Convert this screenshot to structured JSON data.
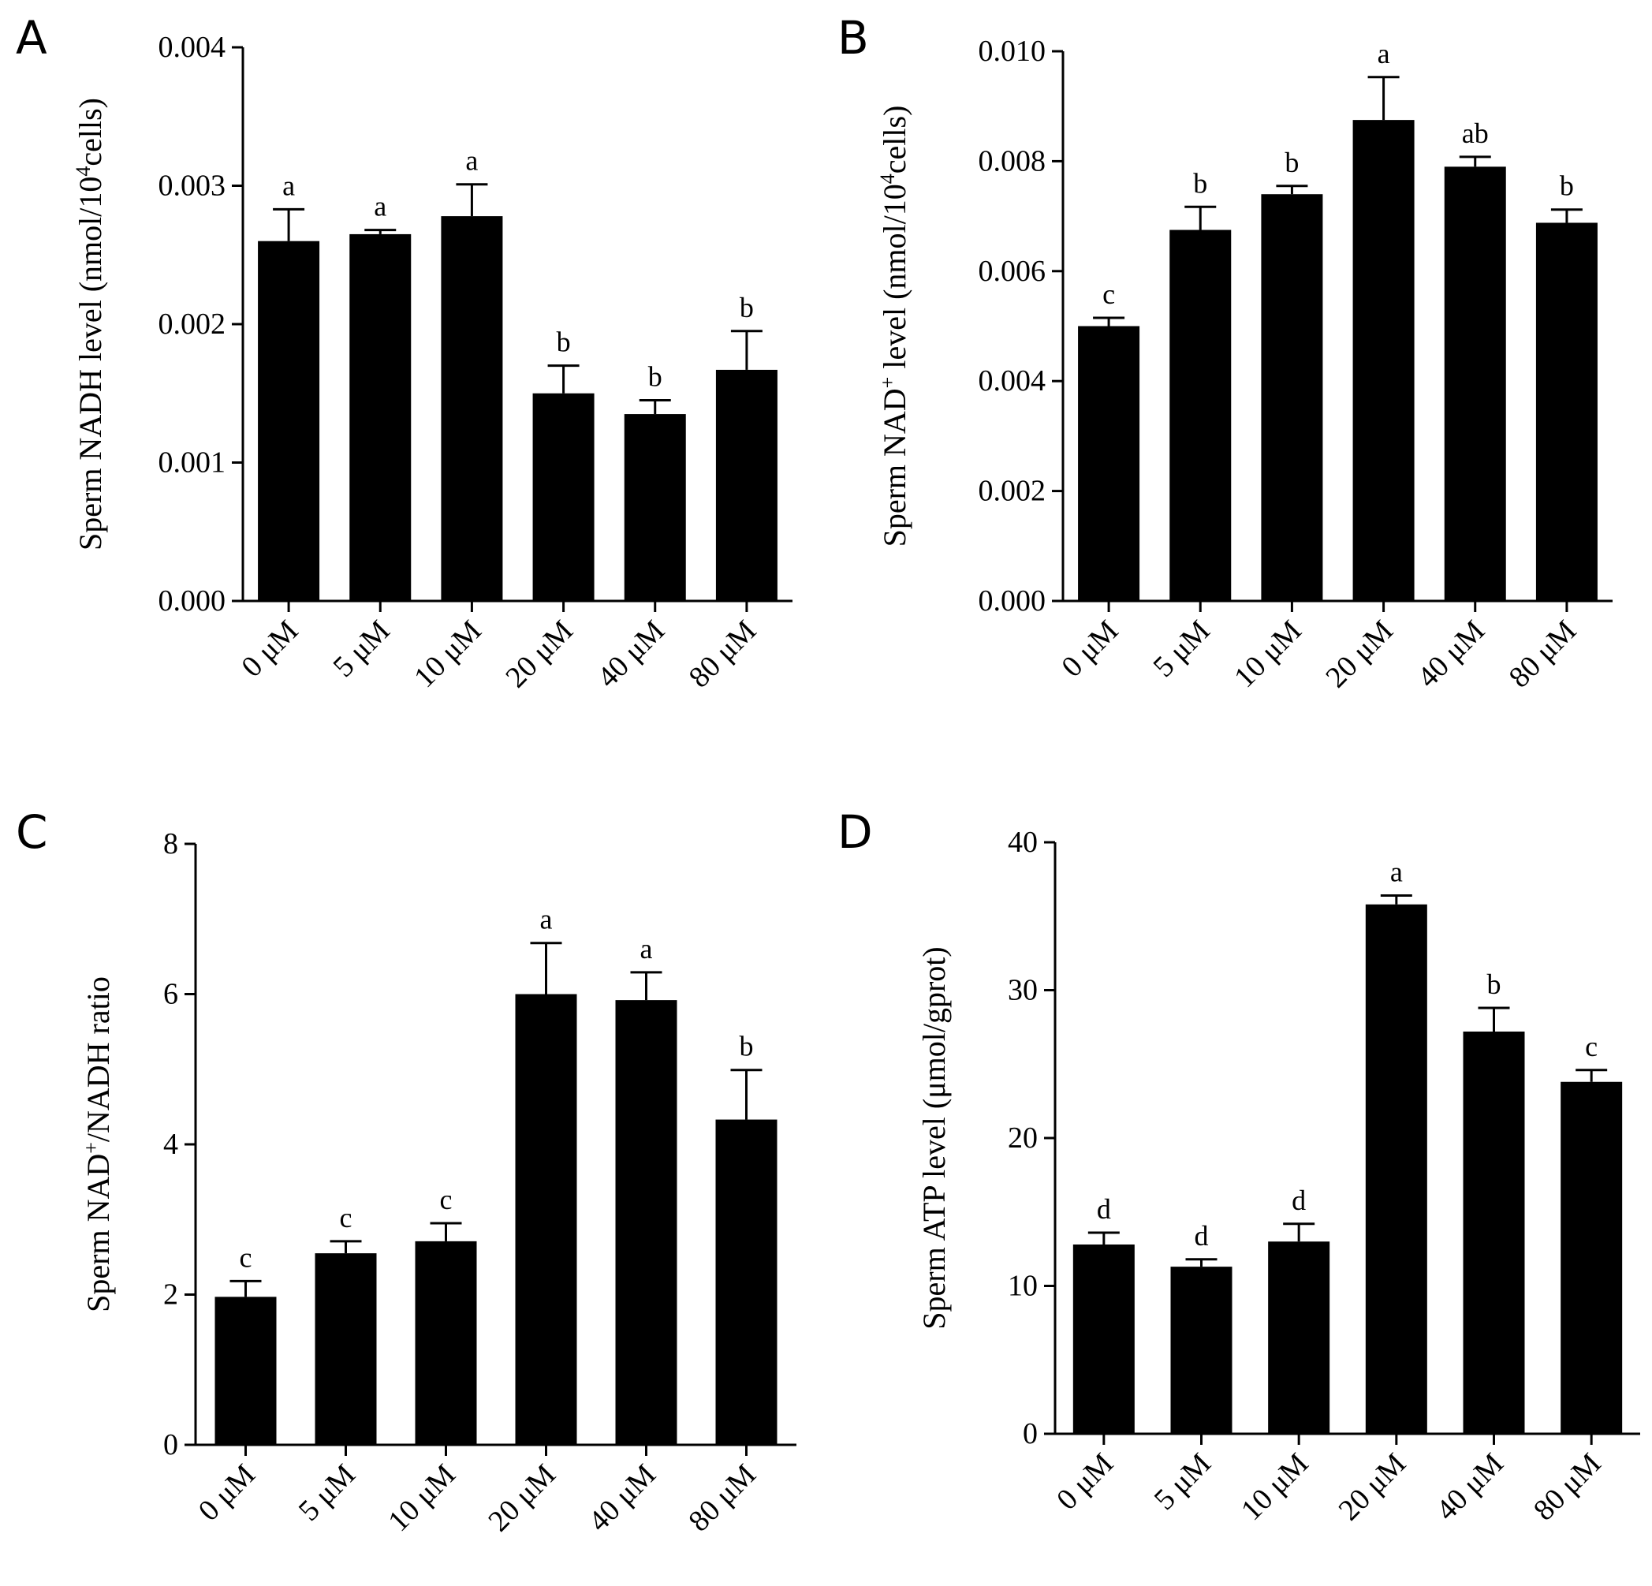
{
  "colors": {
    "bar": "#000000",
    "axis": "#000000",
    "background": "#ffffff"
  },
  "chart_data": [
    {
      "panel": "A",
      "type": "bar",
      "categories": [
        "0 μM",
        "5 μM",
        "10 μM",
        "20 μM",
        "40 μM",
        "80 μM"
      ],
      "values": [
        0.0026,
        0.00265,
        0.00278,
        0.0015,
        0.00135,
        0.00167
      ],
      "errors": [
        0.00023,
        3e-05,
        0.00023,
        0.0002,
        0.0001,
        0.00028
      ],
      "significance": [
        "a",
        "a",
        "a",
        "b",
        "b",
        "b"
      ],
      "ylabel_parts": [
        "Sperm NADH level (nmol/10",
        "4",
        "cells)"
      ],
      "ylim": [
        0,
        0.004
      ],
      "yticks": [
        0,
        0.001,
        0.002,
        0.003,
        0.004
      ],
      "ytick_labels": [
        "0.000",
        "0.001",
        "0.002",
        "0.003",
        "0.004"
      ]
    },
    {
      "panel": "B",
      "type": "bar",
      "categories": [
        "0 μM",
        "5 μM",
        "10 μM",
        "20 μM",
        "40 μM",
        "80 μM"
      ],
      "values": [
        0.005,
        0.00675,
        0.0074,
        0.00875,
        0.0079,
        0.00688
      ],
      "errors": [
        0.00015,
        0.00042,
        0.00015,
        0.00078,
        0.00018,
        0.00024
      ],
      "significance": [
        "c",
        "b",
        "b",
        "a",
        "ab",
        "b"
      ],
      "ylabel_parts": [
        "Sperm NAD",
        "+",
        " level (nmol/10",
        "4",
        "cells)"
      ],
      "ylim": [
        0,
        0.01
      ],
      "yticks": [
        0,
        0.002,
        0.004,
        0.006,
        0.008,
        0.01
      ],
      "ytick_labels": [
        "0.000",
        "0.002",
        "0.004",
        "0.006",
        "0.008",
        "0.010"
      ]
    },
    {
      "panel": "C",
      "type": "bar",
      "categories": [
        "0 μM",
        "5 μM",
        "10 μM",
        "20 μM",
        "40 μM",
        "80 μM"
      ],
      "values": [
        1.97,
        2.55,
        2.71,
        6.0,
        5.92,
        4.33
      ],
      "errors": [
        0.21,
        0.16,
        0.24,
        0.68,
        0.37,
        0.66
      ],
      "significance": [
        "c",
        "c",
        "c",
        "a",
        "a",
        "b"
      ],
      "ylabel_parts": [
        "Sperm NAD",
        "+",
        "/NADH ratio"
      ],
      "ylim": [
        0,
        8
      ],
      "yticks": [
        0,
        2,
        4,
        6,
        8
      ],
      "ytick_labels": [
        "0",
        "2",
        "4",
        "6",
        "8"
      ]
    },
    {
      "panel": "D",
      "type": "bar",
      "categories": [
        "0 μM",
        "5 μM",
        "10 μM",
        "20 μM",
        "40 μM",
        "80 μM"
      ],
      "values": [
        12.8,
        11.3,
        13.0,
        35.8,
        27.2,
        23.8
      ],
      "errors": [
        0.8,
        0.5,
        1.2,
        0.6,
        1.6,
        0.8
      ],
      "significance": [
        "d",
        "d",
        "d",
        "a",
        "b",
        "c"
      ],
      "ylabel_parts": [
        "Sperm ATP level (μmol/gprot)"
      ],
      "ylim": [
        0,
        40
      ],
      "yticks": [
        0,
        10,
        20,
        30,
        40
      ],
      "ytick_labels": [
        "0",
        "10",
        "20",
        "30",
        "40"
      ]
    }
  ]
}
